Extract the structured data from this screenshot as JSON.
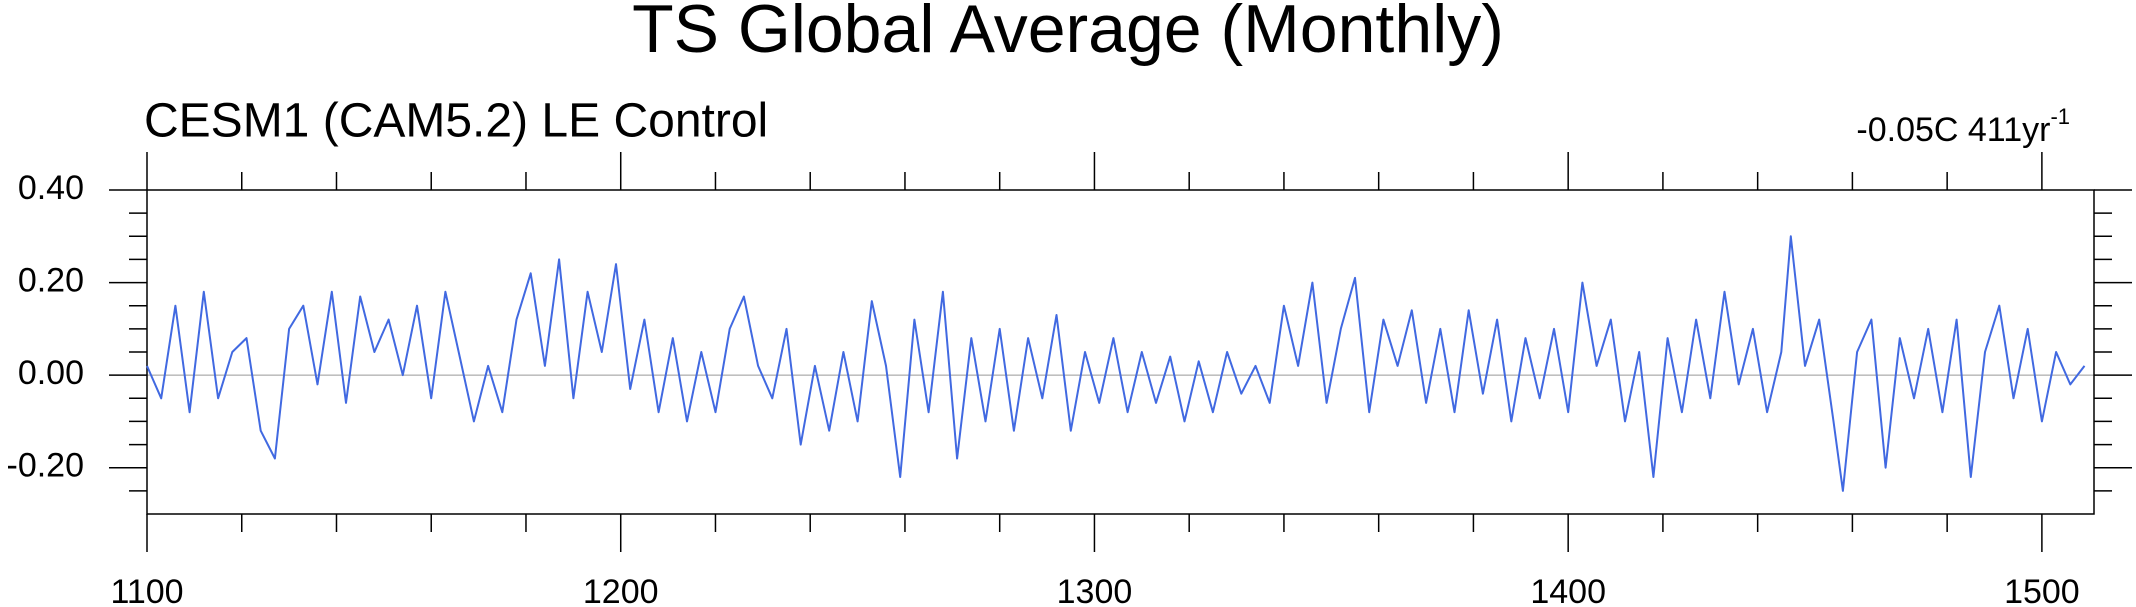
{
  "chart_data": {
    "type": "line",
    "title": "TS Global Average (Monthly)",
    "subtitle_left": "CESM1 (CAM5.2) LE Control",
    "subtitle_right": "-0.05C 411yr",
    "subtitle_right_sup": "-1",
    "x": [
      1100,
      1103,
      1106,
      1109,
      1112,
      1115,
      1118,
      1121,
      1124,
      1127,
      1130,
      1133,
      1136,
      1139,
      1142,
      1145,
      1148,
      1151,
      1154,
      1157,
      1160,
      1163,
      1166,
      1169,
      1172,
      1175,
      1178,
      1181,
      1184,
      1187,
      1190,
      1193,
      1196,
      1199,
      1202,
      1205,
      1208,
      1211,
      1214,
      1217,
      1220,
      1223,
      1226,
      1229,
      1232,
      1235,
      1238,
      1241,
      1244,
      1247,
      1250,
      1253,
      1256,
      1259,
      1262,
      1265,
      1268,
      1271,
      1274,
      1277,
      1280,
      1283,
      1286,
      1289,
      1292,
      1295,
      1298,
      1301,
      1304,
      1307,
      1310,
      1313,
      1316,
      1319,
      1322,
      1325,
      1328,
      1331,
      1334,
      1337,
      1340,
      1343,
      1346,
      1349,
      1352,
      1355,
      1358,
      1361,
      1364,
      1367,
      1370,
      1373,
      1376,
      1379,
      1382,
      1385,
      1388,
      1391,
      1394,
      1397,
      1400,
      1403,
      1406,
      1409,
      1412,
      1415,
      1418,
      1421,
      1424,
      1427,
      1430,
      1433,
      1436,
      1439,
      1442,
      1445,
      1447,
      1450,
      1453,
      1456,
      1458,
      1461,
      1464,
      1467,
      1470,
      1473,
      1476,
      1479,
      1482,
      1485,
      1488,
      1491,
      1494,
      1497,
      1500,
      1503,
      1506,
      1509
    ],
    "series": [
      {
        "color": "#4169e1",
        "values": [
          0.02,
          -0.05,
          0.15,
          -0.08,
          0.18,
          -0.05,
          0.05,
          0.08,
          -0.12,
          -0.18,
          0.1,
          0.15,
          -0.02,
          0.18,
          -0.06,
          0.17,
          0.05,
          0.12,
          0.0,
          0.15,
          -0.05,
          0.18,
          0.04,
          -0.1,
          0.02,
          -0.08,
          0.12,
          0.22,
          0.02,
          0.25,
          -0.05,
          0.18,
          0.05,
          0.24,
          -0.03,
          0.12,
          -0.08,
          0.08,
          -0.1,
          0.05,
          -0.08,
          0.1,
          0.17,
          0.02,
          -0.05,
          0.1,
          -0.15,
          0.02,
          -0.12,
          0.05,
          -0.1,
          0.16,
          0.02,
          -0.22,
          0.12,
          -0.08,
          0.18,
          -0.18,
          0.08,
          -0.1,
          0.1,
          -0.12,
          0.08,
          -0.05,
          0.13,
          -0.12,
          0.05,
          -0.06,
          0.08,
          -0.08,
          0.05,
          -0.06,
          0.04,
          -0.1,
          0.03,
          -0.08,
          0.05,
          -0.04,
          0.02,
          -0.06,
          0.15,
          0.02,
          0.2,
          -0.06,
          0.1,
          0.21,
          -0.08,
          0.12,
          0.02,
          0.14,
          -0.06,
          0.1,
          -0.08,
          0.14,
          -0.04,
          0.12,
          -0.1,
          0.08,
          -0.05,
          0.1,
          -0.08,
          0.2,
          0.02,
          0.12,
          -0.1,
          0.05,
          -0.22,
          0.08,
          -0.08,
          0.12,
          -0.05,
          0.18,
          -0.02,
          0.1,
          -0.08,
          0.05,
          0.3,
          0.02,
          0.12,
          -0.1,
          -0.25,
          0.05,
          0.12,
          -0.2,
          0.08,
          -0.05,
          0.1,
          -0.08,
          0.12,
          -0.22,
          0.05,
          0.15,
          -0.05,
          0.1,
          -0.1,
          0.05,
          -0.02,
          0.02
        ]
      }
    ],
    "xlim": [
      1100,
      1511
    ],
    "ylim": [
      -0.3,
      0.4
    ],
    "xticks": [
      1100,
      1200,
      1300,
      1400,
      1500
    ],
    "xminorticks": [
      1120,
      1140,
      1160,
      1180,
      1220,
      1240,
      1260,
      1280,
      1320,
      1340,
      1360,
      1380,
      1420,
      1440,
      1460,
      1480
    ],
    "yticks": [
      {
        "value": -0.2,
        "label": "-0.20"
      },
      {
        "value": 0,
        "label": "0.00"
      },
      {
        "value": 0.2,
        "label": "0.20"
      },
      {
        "value": 0.4,
        "label": "0.40"
      }
    ],
    "yminorticks": [
      -0.25,
      -0.15,
      -0.1,
      -0.05,
      0.05,
      0.1,
      0.15,
      0.25,
      0.3,
      0.35
    ],
    "reference_line": 0
  }
}
